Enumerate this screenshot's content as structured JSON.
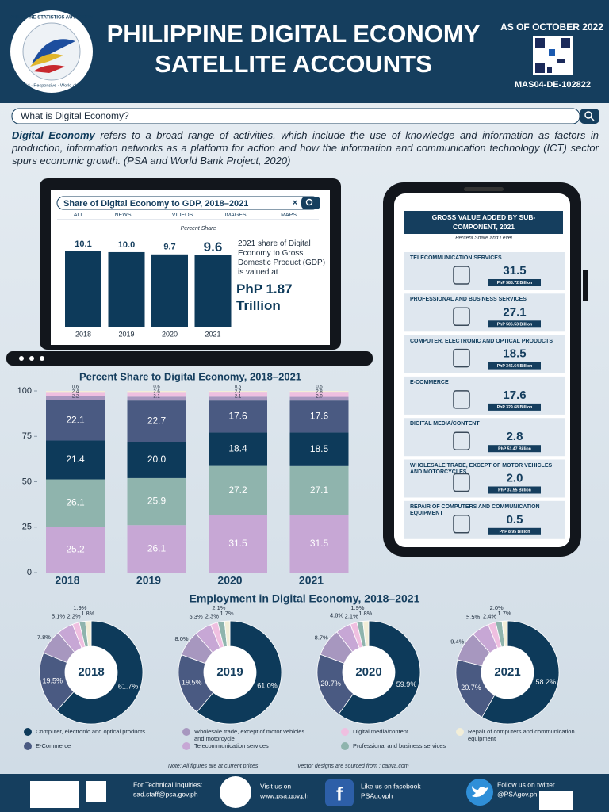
{
  "header": {
    "org": "PHILIPPINE STATISTICS AUTHORITY",
    "motto": "Solid · Responsive · World-class",
    "title_lines": [
      "PHILIPPINE DIGITAL ECONOMY",
      "SATELLITE ACCOUNTS"
    ],
    "as_of": "AS OF OCTOBER 2022",
    "code": "MAS04-DE-102822"
  },
  "search": "What is Digital Economy?",
  "intro": {
    "term": "Digital Economy",
    "text": " refers to a broad range of activities, which include the use of knowledge and information as factors in production, information networks as a platform for action and how the information and communication technology (ICT) sector spurs economic growth. (PSA and World Bank Project, 2020)"
  },
  "chart_data": [
    {
      "type": "bar",
      "title": "Share of Digital Economy to GDP, 2018–2021",
      "tabs": [
        "ALL",
        "NEWS",
        "VIDEOS",
        "IMAGES",
        "MAPS"
      ],
      "subtitle": "Percent Share",
      "categories": [
        "2018",
        "2019",
        "2020",
        "2021"
      ],
      "values": [
        10.1,
        10.0,
        9.7,
        9.6
      ],
      "value_labels": [
        "10.1",
        "10.0",
        "9.7",
        "9.6"
      ],
      "color": "#0d3a5a",
      "annotation": "2021 share of Digital Economy to Gross Domestic Product (GDP) is valued at",
      "highlight": "PhP 1.87 Trillion"
    },
    {
      "type": "stacked_bar",
      "title": "Percent Share to Digital Economy, 2018–2021",
      "categories": [
        "2018",
        "2019",
        "2020",
        "2021"
      ],
      "ylim": [
        0,
        100
      ],
      "yticks": [
        0,
        25,
        50,
        75,
        100
      ],
      "series": [
        {
          "color": "#c7a7d5",
          "values": [
            25.2,
            26.1,
            31.5,
            31.5
          ],
          "value_labels": [
            "25.2",
            "26.1",
            "31.5",
            "31.5"
          ]
        },
        {
          "color": "#8fb4ad",
          "values": [
            26.1,
            25.9,
            27.2,
            27.1
          ],
          "value_labels": [
            "26.1",
            "25.9",
            "27.2",
            "27.1"
          ]
        },
        {
          "color": "#0d3a5a",
          "values": [
            21.4,
            20.0,
            18.4,
            18.5
          ],
          "value_labels": [
            "21.4",
            "20.0",
            "18.4",
            "18.5"
          ]
        },
        {
          "color": "#4a5a82",
          "values": [
            22.1,
            22.7,
            17.6,
            17.6
          ],
          "value_labels": [
            "22.1",
            "22.7",
            "17.6",
            "17.6"
          ]
        },
        {
          "color": "#a797bf",
          "values": [
            2.2,
            2.1,
            2.1,
            2.0
          ],
          "value_labels": [
            "2.2",
            "2.1",
            "2.1",
            "2.0"
          ]
        },
        {
          "color": "#efbfe0",
          "values": [
            2.4,
            2.6,
            2.7,
            2.8
          ],
          "value_labels": [
            "2.4",
            "2.6",
            "2.7",
            "2.8"
          ]
        },
        {
          "color": "#f2eed8",
          "values": [
            0.6,
            0.6,
            0.5,
            0.5
          ],
          "value_labels": [
            "0.6",
            "0.6",
            "0.5",
            "0.5"
          ]
        }
      ]
    },
    {
      "type": "list",
      "title": "GROSS VALUE ADDED BY SUB-COMPONENT, 2021",
      "subtitle": "Percent Share and Level",
      "categories": [
        "TELECOMMUNICATION SERVICES",
        "PROFESSIONAL AND BUSINESS SERVICES",
        "COMPUTER, ELECTRONIC AND OPTICAL PRODUCTS",
        "E-COMMERCE",
        "DIGITAL MEDIA/CONTENT",
        "WHOLESALE TRADE, EXCEPT OF MOTOR VEHICLES AND MOTORCYCLES",
        "REPAIR OF COMPUTERS AND COMMUNICATION EQUIPMENT"
      ],
      "values": [
        31.5,
        27.1,
        18.5,
        17.6,
        2.8,
        2.0,
        0.5
      ],
      "value_labels": [
        "31.5",
        "27.1",
        "18.5",
        "17.6",
        "2.8",
        "2.0",
        "0.5"
      ],
      "levels": [
        "PhP 588.72 Billion",
        "PhP 506.53 Billion",
        "PhP 346.64 Billion",
        "PhP 329.68 Billion",
        "PhP 51.47 Billion",
        "PhP 37.55 Billion",
        "PhP 8.95 Billion"
      ]
    },
    {
      "type": "donut",
      "title": "Employment in Digital Economy, 2018–2021",
      "categories": [
        "Computer, electronic and optical products",
        "E-Commerce",
        "Wholesale trade, except of motor vehicles and motorcycle",
        "Telecommunication services",
        "Digital media/content",
        "Professional and business services",
        "Repair of computers and communication equipment"
      ],
      "colors": [
        "#0d3a5a",
        "#4a5a82",
        "#a797bf",
        "#c7a7d5",
        "#efbfe0",
        "#8fb4ad",
        "#f2eed8"
      ],
      "series": [
        {
          "name": "2018",
          "values": [
            61.7,
            19.5,
            7.8,
            5.1,
            2.2,
            1.9,
            1.8
          ],
          "value_labels": [
            "61.7%",
            "19.5%",
            "7.8%",
            "5.1%",
            "2.2%",
            "1.9%",
            "1.8%"
          ]
        },
        {
          "name": "2019",
          "values": [
            61.0,
            19.5,
            8.0,
            5.3,
            2.3,
            2.1,
            1.7
          ],
          "value_labels": [
            "61.0%",
            "19.5%",
            "8.0%",
            "5.3%",
            "2.3%",
            "2.1%",
            "1.7%"
          ]
        },
        {
          "name": "2020",
          "values": [
            59.9,
            20.7,
            8.7,
            4.8,
            2.1,
            1.9,
            1.8
          ],
          "value_labels": [
            "59.9%",
            "20.7%",
            "8.7%",
            "4.8%",
            "2.1%",
            "1.9%",
            "1.8%"
          ]
        },
        {
          "name": "2021",
          "values": [
            58.2,
            20.7,
            9.4,
            5.5,
            2.4,
            2.0,
            1.7
          ],
          "value_labels": [
            "58.2%",
            "20.7%",
            "9.4%",
            "5.5%",
            "2.4%",
            "2.0%",
            "1.7%"
          ]
        }
      ]
    }
  ],
  "notes": [
    "Note: All figures are at current prices",
    "Vector designs are sourced from : canva.com"
  ],
  "footer": {
    "inquiry_label": "For Technical Inquiries:",
    "inquiry_email": "sad.staff@psa.gov.ph",
    "web_label": "Visit us on",
    "web": "www.psa.gov.ph",
    "facebook_label": "Like us on facebook",
    "facebook": "PSAgovph",
    "twitter_label": "Follow us on twitter",
    "twitter": "@PSAgov.ph"
  }
}
